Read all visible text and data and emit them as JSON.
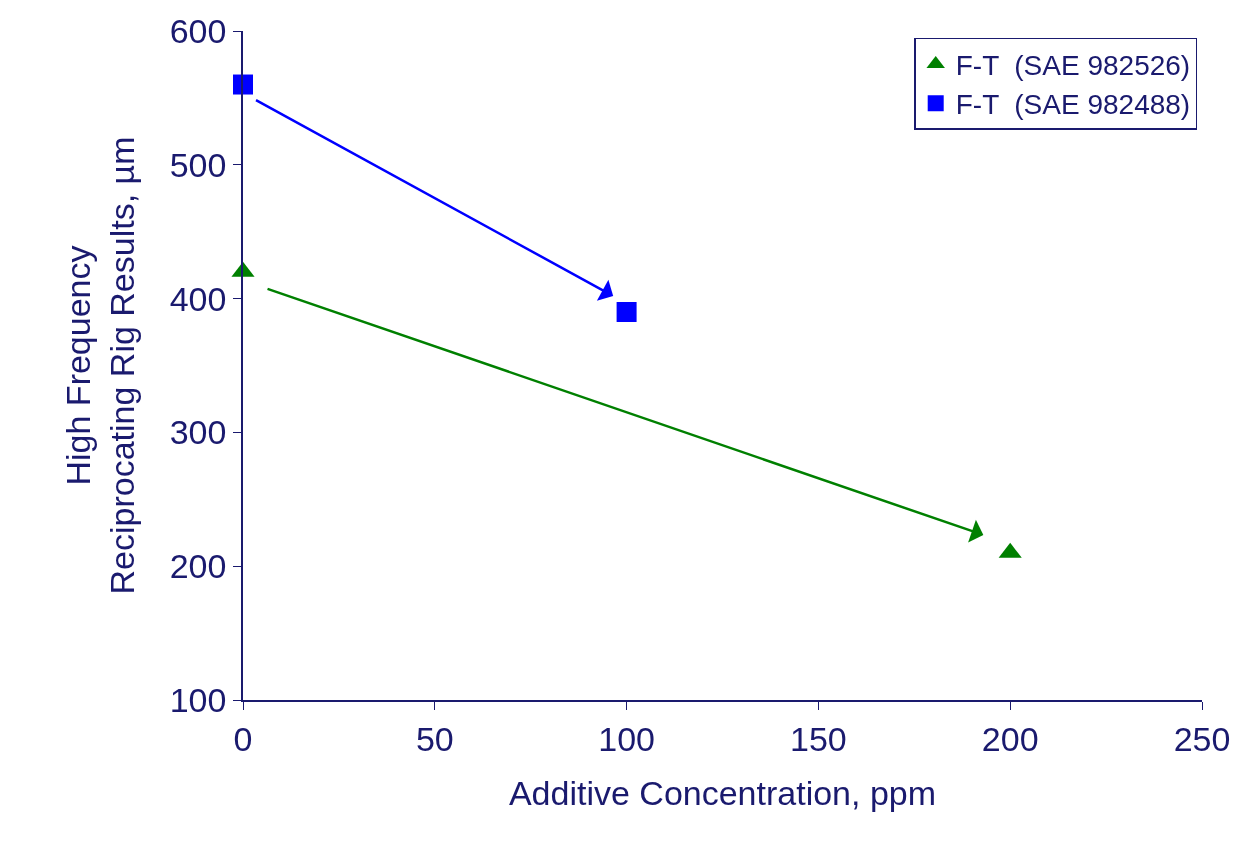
{
  "chart_data": {
    "type": "scatter",
    "xlabel": "Additive Concentration, ppm",
    "ylabel": "High Frequency\nReciprocating Rig Results, µm",
    "xlim": [
      0,
      250
    ],
    "xticks": [
      0,
      50,
      100,
      150,
      200,
      250
    ],
    "ylim": [
      100,
      600
    ],
    "yticks": [
      100,
      200,
      300,
      400,
      500,
      600
    ],
    "grid": false,
    "legend": "top right",
    "series": [
      {
        "name": "F-T  (SAE 982526)",
        "color": "#008000",
        "marker": "triangle",
        "x": [
          0,
          200
        ],
        "values": [
          420,
          210
        ]
      },
      {
        "name": "F-T  (SAE 982488)",
        "color": "#0000ff",
        "marker": "square",
        "x": [
          0,
          100
        ],
        "values": [
          560,
          390
        ]
      }
    ]
  }
}
